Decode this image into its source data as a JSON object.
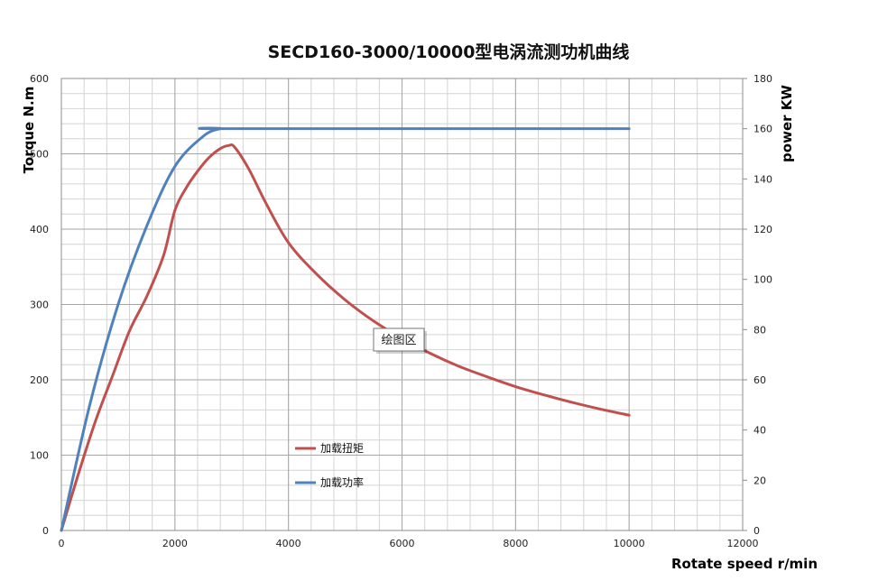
{
  "chart_data": {
    "type": "line",
    "title": "SECD160-3000/10000型电涡流测功机曲线",
    "xlabel": "Rotate speed r/min",
    "ylabel_left": "Torque N.m",
    "ylabel_right": "power KW",
    "xlim": [
      0,
      12000
    ],
    "ylim_left": [
      0,
      600
    ],
    "ylim_right": [
      0,
      180
    ],
    "x_ticks": [
      "0",
      "2000",
      "4000",
      "6000",
      "8000",
      "10000",
      "12000"
    ],
    "y_left_ticks": [
      "0",
      "100",
      "200",
      "300",
      "400",
      "500",
      "600"
    ],
    "y_right_ticks": [
      "0",
      "20",
      "40",
      "60",
      "80",
      "100",
      "120",
      "140",
      "160",
      "180"
    ],
    "grid": true,
    "legend_position": "bottom-center",
    "series": [
      {
        "name": "加载扭矩",
        "axis": "left",
        "color": "#c0504d",
        "x": [
          0,
          300,
          600,
          900,
          1200,
          1500,
          1800,
          2000,
          2200,
          2400,
          2600,
          2800,
          2950,
          3050,
          3300,
          3600,
          4000,
          4500,
          5000,
          5500,
          6000,
          6500,
          7000,
          7500,
          8000,
          8500,
          9000,
          9500,
          10000
        ],
        "values": [
          0,
          75,
          145,
          205,
          265,
          310,
          365,
          425,
          455,
          477,
          495,
          507,
          511,
          509,
          480,
          435,
          382,
          340,
          306,
          278,
          255,
          235,
          218,
          204,
          191,
          180,
          170,
          161,
          153
        ]
      },
      {
        "name": "加载功率",
        "axis": "right",
        "color": "#4f81bd",
        "x": [
          0,
          500,
          1000,
          1500,
          2000,
          2500,
          2800,
          3000,
          10000
        ],
        "values": [
          0,
          50,
          90,
          121,
          145,
          157,
          160,
          160,
          160
        ]
      }
    ]
  },
  "tooltip": {
    "label": "绘图区"
  }
}
